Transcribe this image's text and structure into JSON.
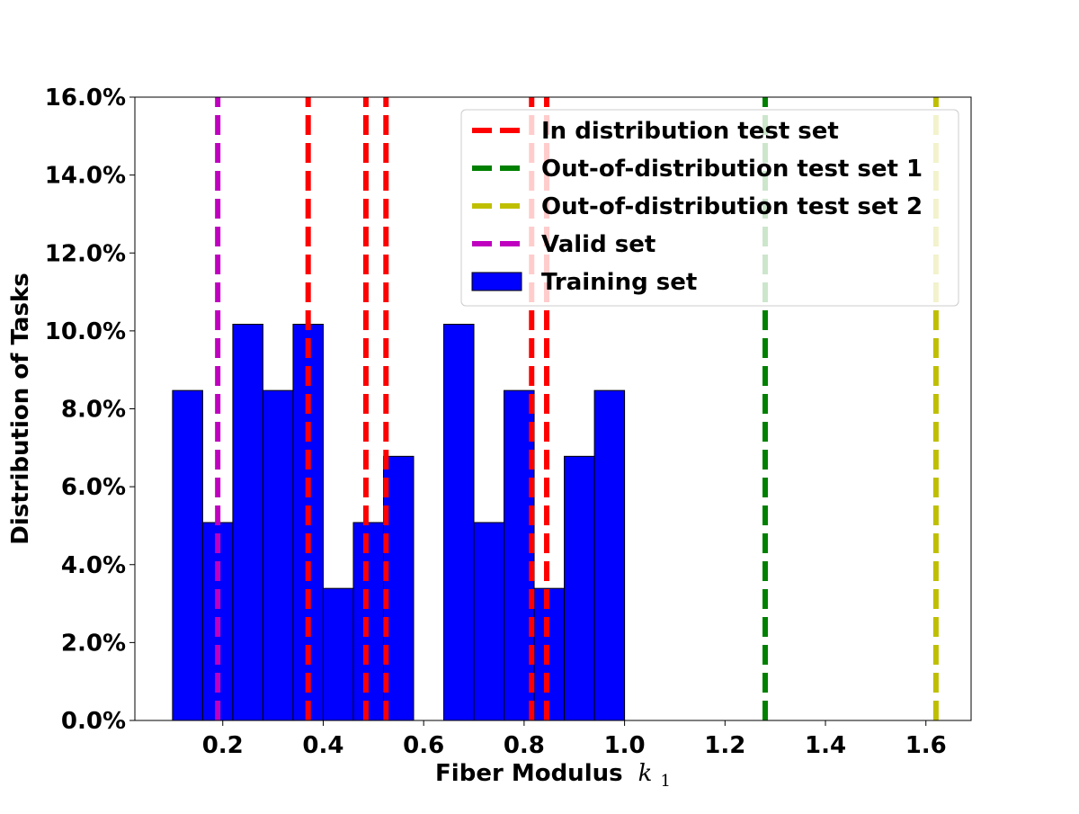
{
  "chart_data": {
    "type": "bar",
    "title": "",
    "xlabel": "Fiber Modulus",
    "xlabel_symbol": "k",
    "xlabel_subscript": "1",
    "ylabel": "Distribution of Tasks",
    "xlim": [
      0.025,
      1.69
    ],
    "ylim": [
      0,
      16
    ],
    "x_ticks": [
      0.2,
      0.4,
      0.6,
      0.8,
      1.0,
      1.2,
      1.4,
      1.6
    ],
    "x_tick_labels": [
      "0.2",
      "0.4",
      "0.6",
      "0.8",
      "1.0",
      "1.2",
      "1.4",
      "1.6"
    ],
    "y_ticks": [
      0,
      2,
      4,
      6,
      8,
      10,
      12,
      14,
      16
    ],
    "y_tick_labels": [
      "0.0%",
      "2.0%",
      "4.0%",
      "6.0%",
      "8.0%",
      "10.0%",
      "12.0%",
      "14.0%",
      "16.0%"
    ],
    "grid": false,
    "legend_position": "top-right",
    "histogram": {
      "name": "Training set",
      "color": "#0000ff",
      "edge_color": "#000000",
      "bin_edges": [
        0.1,
        0.16,
        0.22,
        0.28,
        0.34,
        0.4,
        0.46,
        0.52,
        0.58,
        0.64,
        0.7,
        0.76,
        0.82,
        0.88,
        0.94,
        1.0
      ],
      "values": [
        8.47,
        5.08,
        10.17,
        8.47,
        10.17,
        3.39,
        5.08,
        6.78,
        0,
        10.17,
        5.08,
        8.47,
        3.39,
        6.78,
        8.47
      ]
    },
    "vlines": [
      {
        "name": "In distribution test set",
        "color": "#ff0000",
        "x": [
          0.37,
          0.485,
          0.525,
          0.815,
          0.845
        ]
      },
      {
        "name": "Out-of-distribution test set 1",
        "color": "#008000",
        "x": [
          1.28
        ]
      },
      {
        "name": "Out-of-distribution test set 2",
        "color": "#bfbf00",
        "x": [
          1.62
        ]
      },
      {
        "name": "Valid set",
        "color": "#bf00bf",
        "x": [
          0.19
        ]
      }
    ],
    "legend": [
      {
        "label": "In distribution test set",
        "color": "#ff0000",
        "kind": "dashed"
      },
      {
        "label": "Out-of-distribution test set 1",
        "color": "#008000",
        "kind": "dashed"
      },
      {
        "label": "Out-of-distribution test set 2",
        "color": "#bfbf00",
        "kind": "dashed"
      },
      {
        "label": "Valid set",
        "color": "#bf00bf",
        "kind": "dashed"
      },
      {
        "label": "Training set",
        "color": "#0000ff",
        "kind": "patch"
      }
    ]
  }
}
